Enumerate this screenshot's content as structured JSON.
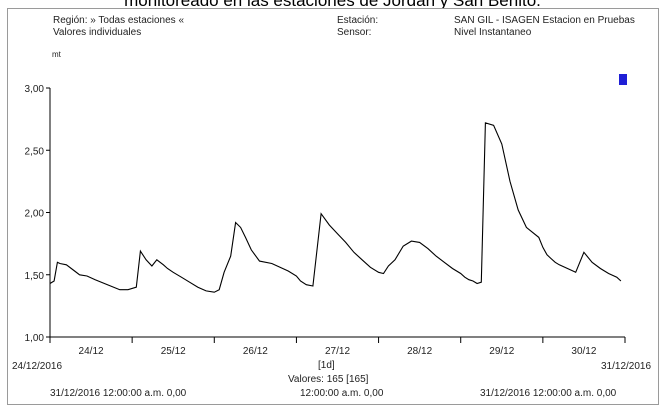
{
  "caption": "monitoreado en las estaciones de Jordan y San Benito.",
  "header": {
    "region_label": "Región: » Todas estaciones «",
    "values_label": "Valores individuales",
    "station_key": "Estación:",
    "sensor_key": "Sensor:",
    "station_value": "SAN GIL - ISAGEN Estacion en Pruebas",
    "sensor_value": "Nivel Instantaneo"
  },
  "footer": {
    "left_date": "24/12/2016",
    "right_date": "31/12/2016",
    "interval": "[1d]",
    "values_count": "Valores: 165 [165]",
    "left_stat": "31/12/2016 12:00:00 a.m.   0,00",
    "center_stat": "12:00:00 a.m.   0,00",
    "right_stat": "31/12/2016 12:00:00 a.m.   0,00"
  },
  "colors": {
    "line": "#000000",
    "marker": "#1f1fd6",
    "axis": "#000000"
  },
  "chart_data": {
    "type": "line",
    "title": "",
    "ylabel": "mt",
    "xlabel": "",
    "ylim": [
      1.0,
      3.0
    ],
    "xlim": [
      0,
      7
    ],
    "y_ticks": [
      1.0,
      1.5,
      2.0,
      2.5,
      3.0
    ],
    "y_tick_labels": [
      "1,00",
      "1,50",
      "2,00",
      "2,50",
      "3,00"
    ],
    "x_tick_positions": [
      0.5,
      1.5,
      2.5,
      3.5,
      4.5,
      5.5,
      6.5
    ],
    "x_tick_labels": [
      "24/12",
      "25/12",
      "26/12",
      "27/12",
      "28/12",
      "29/12",
      "30/12"
    ],
    "grid": false,
    "series": [
      {
        "x": [
          0.0,
          0.05,
          0.09,
          0.12,
          0.2,
          0.3,
          0.36,
          0.45,
          0.55,
          0.7,
          0.85,
          0.95,
          1.05,
          1.1,
          1.17,
          1.24,
          1.3,
          1.38,
          1.43,
          1.5,
          1.6,
          1.7,
          1.8,
          1.9,
          2.0,
          2.06,
          2.12,
          2.2,
          2.26,
          2.32,
          2.38,
          2.45,
          2.55,
          2.7,
          2.9,
          3.0,
          3.05,
          3.12,
          3.2,
          3.3,
          3.4,
          3.5,
          3.6,
          3.7,
          3.8,
          3.9,
          4.0,
          4.06,
          4.12,
          4.2,
          4.3,
          4.4,
          4.5,
          4.6,
          4.7,
          4.8,
          4.9,
          5.0,
          5.05,
          5.1,
          5.15,
          5.2,
          5.25,
          5.3,
          5.4,
          5.5,
          5.6,
          5.7,
          5.8,
          5.95,
          6.0,
          6.05,
          6.1,
          6.15,
          6.2,
          6.3,
          6.4,
          6.5,
          6.6,
          6.7,
          6.8,
          6.9,
          6.95
        ],
        "y": [
          1.43,
          1.45,
          1.6,
          1.59,
          1.58,
          1.53,
          1.5,
          1.49,
          1.46,
          1.42,
          1.38,
          1.38,
          1.4,
          1.69,
          1.62,
          1.57,
          1.62,
          1.58,
          1.55,
          1.52,
          1.48,
          1.44,
          1.4,
          1.37,
          1.36,
          1.38,
          1.52,
          1.65,
          1.92,
          1.88,
          1.8,
          1.7,
          1.61,
          1.59,
          1.53,
          1.49,
          1.45,
          1.42,
          1.41,
          1.99,
          1.9,
          1.83,
          1.76,
          1.68,
          1.62,
          1.56,
          1.52,
          1.51,
          1.57,
          1.62,
          1.73,
          1.77,
          1.76,
          1.71,
          1.65,
          1.6,
          1.55,
          1.51,
          1.48,
          1.46,
          1.45,
          1.43,
          1.44,
          2.72,
          2.7,
          2.55,
          2.25,
          2.02,
          1.88,
          1.8,
          1.72,
          1.66,
          1.63,
          1.6,
          1.58,
          1.55,
          1.52,
          1.68,
          1.6,
          1.55,
          1.51,
          1.48,
          1.45
        ]
      }
    ]
  }
}
